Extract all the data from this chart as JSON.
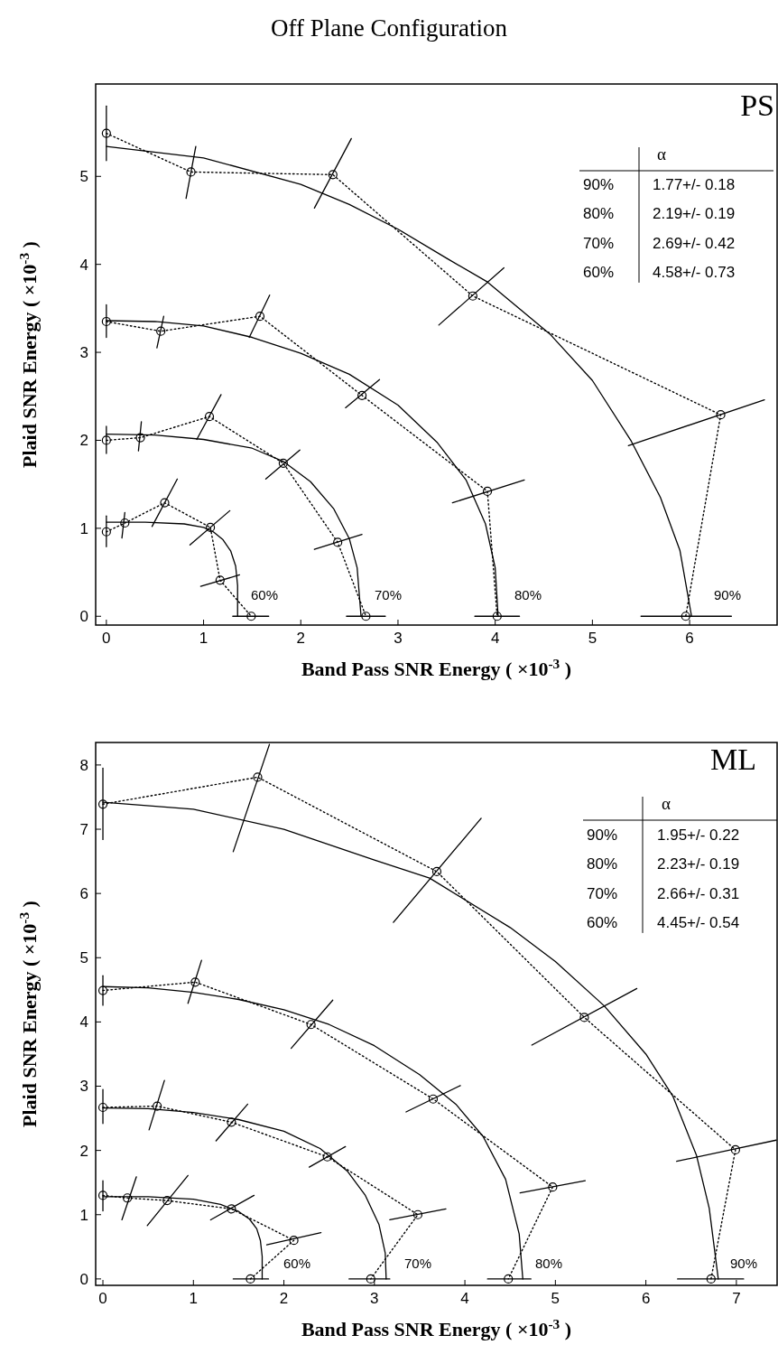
{
  "chart_data": [
    {
      "type": "line",
      "title": "Off Plane Configuration",
      "xlabel": "Band Pass SNR Energy ( ×10$^{-3}$ )",
      "ylabel": "Plaid SNR Energy ( ×10$^{-3}$ )",
      "xlim": [
        -0.11,
        6.9
      ],
      "ylim": [
        -0.1,
        6.05
      ],
      "xticks": [
        0,
        1,
        2,
        3,
        4,
        5,
        6
      ],
      "yticks": [
        0,
        1,
        2,
        3,
        4,
        5
      ],
      "grid": false,
      "annotations": [
        "PS",
        "α",
        "90%",
        "1.77+/- 0.18",
        "80%",
        "2.19+/- 0.19",
        "70%",
        "2.69+/- 0.42",
        "60%",
        "4.58+/- 0.73",
        "60%",
        "70%",
        "80%",
        "90%"
      ],
      "series": [
        {
          "type": "line",
          "color": "#000000",
          "marker": "circle",
          "line_style": "dotted",
          "x": [
            0,
            0.19,
            0.6,
            1.07,
            1.17,
            1.49
          ],
          "values": [
            0.96,
            1.06,
            1.29,
            1.01,
            0.41,
            0
          ]
        },
        {
          "type": "line",
          "color": "#000000",
          "marker": "circle",
          "line_style": "dotted",
          "x": [
            0,
            0.35,
            1.06,
            1.82,
            2.38,
            2.67
          ],
          "values": [
            2.0,
            2.03,
            2.27,
            1.74,
            0.84,
            0
          ]
        },
        {
          "type": "line",
          "color": "#000000",
          "marker": "circle",
          "line_style": "dotted",
          "x": [
            0,
            0.56,
            1.58,
            2.63,
            3.92,
            4.02
          ],
          "values": [
            3.35,
            3.24,
            3.41,
            2.51,
            1.42,
            0
          ]
        },
        {
          "type": "line",
          "color": "#000000",
          "marker": "circle",
          "line_style": "dotted",
          "x": [
            0,
            0.87,
            2.33,
            3.77,
            6.32,
            5.96
          ],
          "values": [
            5.49,
            5.05,
            5.02,
            3.64,
            2.29,
            0
          ]
        },
        {
          "type": "line",
          "color": "#000000",
          "x": [
            0,
            0
          ],
          "values": [
            0.79,
            1.14
          ]
        },
        {
          "type": "line",
          "color": "#000000",
          "x": [
            0.16,
            0.19
          ],
          "values": [
            0.89,
            1.18
          ]
        },
        {
          "type": "line",
          "color": "#000000",
          "x": [
            0.47,
            0.73
          ],
          "values": [
            1.02,
            1.56
          ]
        },
        {
          "type": "line",
          "color": "#000000",
          "x": [
            0.86,
            1.27
          ],
          "values": [
            0.81,
            1.2
          ]
        },
        {
          "type": "line",
          "color": "#000000",
          "x": [
            0.97,
            1.37
          ],
          "values": [
            0.34,
            0.47
          ]
        },
        {
          "type": "line",
          "color": "#000000",
          "x": [
            1.3,
            1.67
          ],
          "values": [
            0,
            0
          ]
        },
        {
          "type": "line",
          "color": "#000000",
          "x": [
            0,
            0
          ],
          "values": [
            1.85,
            2.16
          ]
        },
        {
          "type": "line",
          "color": "#000000",
          "x": [
            0.33,
            0.36
          ],
          "values": [
            1.88,
            2.21
          ]
        },
        {
          "type": "line",
          "color": "#000000",
          "x": [
            0.93,
            1.18
          ],
          "values": [
            2.01,
            2.52
          ]
        },
        {
          "type": "line",
          "color": "#000000",
          "x": [
            1.64,
            1.99
          ],
          "values": [
            1.56,
            1.89
          ]
        },
        {
          "type": "line",
          "color": "#000000",
          "x": [
            2.14,
            2.63
          ],
          "values": [
            0.76,
            0.93
          ]
        },
        {
          "type": "line",
          "color": "#000000",
          "x": [
            2.47,
            2.87
          ],
          "values": [
            0,
            0
          ]
        },
        {
          "type": "line",
          "color": "#000000",
          "x": [
            0,
            0
          ],
          "values": [
            3.17,
            3.54
          ]
        },
        {
          "type": "line",
          "color": "#000000",
          "x": [
            0.52,
            0.59
          ],
          "values": [
            3.05,
            3.41
          ]
        },
        {
          "type": "line",
          "color": "#000000",
          "x": [
            1.47,
            1.68
          ],
          "values": [
            3.17,
            3.65
          ]
        },
        {
          "type": "line",
          "color": "#000000",
          "x": [
            2.46,
            2.81
          ],
          "values": [
            2.37,
            2.69
          ]
        },
        {
          "type": "line",
          "color": "#000000",
          "x": [
            3.56,
            4.3
          ],
          "values": [
            1.29,
            1.55
          ]
        },
        {
          "type": "line",
          "color": "#000000",
          "x": [
            3.79,
            4.25
          ],
          "values": [
            0,
            0
          ]
        },
        {
          "type": "line",
          "color": "#000000",
          "x": [
            0,
            0
          ],
          "values": [
            5.18,
            5.8
          ]
        },
        {
          "type": "line",
          "color": "#000000",
          "x": [
            0.82,
            0.92
          ],
          "values": [
            4.75,
            5.34
          ]
        },
        {
          "type": "line",
          "color": "#000000",
          "x": [
            2.14,
            2.52
          ],
          "values": [
            4.64,
            5.43
          ]
        },
        {
          "type": "line",
          "color": "#000000",
          "x": [
            3.42,
            4.09
          ],
          "values": [
            3.31,
            3.96
          ]
        },
        {
          "type": "line",
          "color": "#000000",
          "x": [
            5.37,
            6.77
          ],
          "values": [
            1.94,
            2.46
          ]
        },
        {
          "type": "line",
          "color": "#000000",
          "x": [
            5.5,
            6.43
          ],
          "values": [
            0,
            0
          ]
        },
        {
          "type": "line",
          "color": "#000000",
          "marker": "none",
          "line_style": "solid",
          "x": [
            0,
            0.4,
            0.8,
            1.0,
            1.1,
            1.2,
            1.28,
            1.33,
            1.35,
            1.35
          ],
          "values": [
            1.07,
            1.07,
            1.05,
            1.01,
            0.96,
            0.87,
            0.74,
            0.57,
            0.35,
            0
          ]
        },
        {
          "type": "line",
          "color": "#000000",
          "marker": "none",
          "line_style": "solid",
          "x": [
            0,
            0.5,
            1.0,
            1.5,
            1.82,
            2.1,
            2.34,
            2.5,
            2.58,
            2.62
          ],
          "values": [
            2.07,
            2.06,
            2.01,
            1.91,
            1.76,
            1.53,
            1.22,
            0.88,
            0.55,
            0
          ]
        },
        {
          "type": "line",
          "color": "#000000",
          "marker": "none",
          "line_style": "solid",
          "x": [
            0,
            0.5,
            1.0,
            1.5,
            2.0,
            2.5,
            3.0,
            3.4,
            3.7,
            3.9,
            4.0,
            4.03
          ],
          "values": [
            3.36,
            3.35,
            3.3,
            3.17,
            2.99,
            2.75,
            2.4,
            1.98,
            1.55,
            1.05,
            0.55,
            0
          ]
        },
        {
          "type": "line",
          "color": "#000000",
          "marker": "none",
          "line_style": "solid",
          "x": [
            0,
            1,
            2,
            2.5,
            3,
            3.5,
            3.92,
            4.57,
            5.0,
            5.4,
            5.7,
            5.9,
            6.02
          ],
          "values": [
            5.34,
            5.21,
            4.91,
            4.68,
            4.4,
            4.07,
            3.8,
            3.2,
            2.68,
            1.99,
            1.35,
            0.75,
            0
          ]
        }
      ]
    },
    {
      "type": "line",
      "xlabel": "Band Pass SNR Energy ( ×10$^{-3}$ )",
      "ylabel": "Plaid SNR Energy ( ×10$^{-3}$ )",
      "xlim": [
        -0.08,
        7.45
      ],
      "ylim": [
        -0.1,
        8.35
      ],
      "xticks": [
        0,
        1,
        2,
        3,
        4,
        5,
        6,
        7
      ],
      "yticks": [
        0,
        1,
        2,
        3,
        4,
        5,
        6,
        7,
        8
      ],
      "grid": false,
      "annotations": [
        "ML",
        "α",
        "90%",
        "1.95+/- 0.22",
        "80%",
        "2.23+/- 0.19",
        "70%",
        "2.66+/- 0.31",
        "60%",
        "4.45+/- 0.54",
        "60%",
        "70%",
        "80%",
        "90%"
      ],
      "series": [
        {
          "type": "line",
          "color": "#000000",
          "marker": "circle",
          "line_style": "dotted",
          "x": [
            0,
            0.27,
            0.71,
            1.42,
            2.11,
            1.63
          ],
          "values": [
            1.3,
            1.26,
            1.22,
            1.09,
            0.6,
            0
          ]
        },
        {
          "type": "line",
          "color": "#000000",
          "marker": "circle",
          "line_style": "dotted",
          "x": [
            0,
            0.6,
            1.42,
            2.48,
            3.48,
            2.96
          ],
          "values": [
            2.67,
            2.69,
            2.44,
            1.9,
            1.0,
            0
          ]
        },
        {
          "type": "line",
          "color": "#000000",
          "marker": "circle",
          "line_style": "dotted",
          "x": [
            0,
            1.02,
            2.3,
            3.65,
            4.97,
            4.48
          ],
          "values": [
            4.49,
            4.62,
            3.96,
            2.8,
            1.43,
            0
          ]
        },
        {
          "type": "line",
          "color": "#000000",
          "marker": "circle",
          "line_style": "dotted",
          "x": [
            0,
            1.71,
            3.69,
            5.32,
            6.99,
            6.72
          ],
          "values": [
            7.39,
            7.81,
            6.34,
            4.07,
            2.01,
            0
          ]
        },
        {
          "type": "line",
          "color": "#000000",
          "x": [
            0,
            0
          ],
          "values": [
            1.06,
            1.53
          ]
        },
        {
          "type": "line",
          "color": "#000000",
          "x": [
            0.21,
            0.37
          ],
          "values": [
            0.92,
            1.59
          ]
        },
        {
          "type": "line",
          "color": "#000000",
          "x": [
            0.49,
            0.94
          ],
          "values": [
            0.83,
            1.61
          ]
        },
        {
          "type": "line",
          "color": "#000000",
          "x": [
            1.19,
            1.67
          ],
          "values": [
            0.92,
            1.3
          ]
        },
        {
          "type": "line",
          "color": "#000000",
          "x": [
            1.81,
            2.41
          ],
          "values": [
            0.53,
            0.72
          ]
        },
        {
          "type": "line",
          "color": "#000000",
          "x": [
            1.44,
            1.83
          ],
          "values": [
            0,
            0
          ]
        },
        {
          "type": "line",
          "color": "#000000",
          "x": [
            0,
            0
          ],
          "values": [
            2.42,
            2.95
          ]
        },
        {
          "type": "line",
          "color": "#000000",
          "x": [
            0.51,
            0.68
          ],
          "values": [
            2.32,
            3.09
          ]
        },
        {
          "type": "line",
          "color": "#000000",
          "x": [
            1.25,
            1.6
          ],
          "values": [
            2.15,
            2.72
          ]
        },
        {
          "type": "line",
          "color": "#000000",
          "x": [
            2.28,
            2.68
          ],
          "values": [
            1.74,
            2.06
          ]
        },
        {
          "type": "line",
          "color": "#000000",
          "x": [
            3.17,
            3.79
          ],
          "values": [
            0.92,
            1.09
          ]
        },
        {
          "type": "line",
          "color": "#000000",
          "x": [
            2.72,
            3.17
          ],
          "values": [
            0,
            0
          ]
        },
        {
          "type": "line",
          "color": "#000000",
          "x": [
            0,
            0
          ],
          "values": [
            4.26,
            4.72
          ]
        },
        {
          "type": "line",
          "color": "#000000",
          "x": [
            0.94,
            1.09
          ],
          "values": [
            4.29,
            4.96
          ]
        },
        {
          "type": "line",
          "color": "#000000",
          "x": [
            2.08,
            2.54
          ],
          "values": [
            3.59,
            4.34
          ]
        },
        {
          "type": "line",
          "color": "#000000",
          "x": [
            3.35,
            3.95
          ],
          "values": [
            2.6,
            3.01
          ]
        },
        {
          "type": "line",
          "color": "#000000",
          "x": [
            4.61,
            5.33
          ],
          "values": [
            1.34,
            1.53
          ]
        },
        {
          "type": "line",
          "color": "#000000",
          "x": [
            4.25,
            4.73
          ],
          "values": [
            0,
            0
          ]
        },
        {
          "type": "line",
          "color": "#000000",
          "x": [
            0,
            0
          ],
          "values": [
            6.84,
            7.95
          ]
        },
        {
          "type": "line",
          "color": "#000000",
          "x": [
            1.44,
            1.84
          ],
          "values": [
            6.65,
            8.32
          ]
        },
        {
          "type": "line",
          "color": "#000000",
          "x": [
            3.21,
            4.18
          ],
          "values": [
            5.55,
            7.17
          ]
        },
        {
          "type": "line",
          "color": "#000000",
          "x": [
            4.74,
            5.9
          ],
          "values": [
            3.64,
            4.52
          ]
        },
        {
          "type": "line",
          "color": "#000000",
          "x": [
            6.34,
            7.44
          ],
          "values": [
            1.83,
            2.16
          ]
        },
        {
          "type": "line",
          "color": "#000000",
          "x": [
            6.35,
            7.08
          ],
          "values": [
            0,
            0
          ]
        },
        {
          "type": "line",
          "color": "#000000",
          "marker": "none",
          "line_style": "solid",
          "x": [
            0,
            0.5,
            1.0,
            1.3,
            1.5,
            1.62,
            1.7,
            1.74,
            1.76,
            1.76
          ],
          "values": [
            1.28,
            1.28,
            1.24,
            1.16,
            1.05,
            0.93,
            0.78,
            0.6,
            0.35,
            0
          ]
        },
        {
          "type": "line",
          "color": "#000000",
          "marker": "none",
          "line_style": "solid",
          "x": [
            0,
            0.5,
            1.0,
            1.5,
            2.0,
            2.4,
            2.7,
            2.9,
            3.05,
            3.12,
            3.13
          ],
          "values": [
            2.66,
            2.65,
            2.59,
            2.48,
            2.3,
            2.03,
            1.68,
            1.3,
            0.85,
            0.4,
            0
          ]
        },
        {
          "type": "line",
          "color": "#000000",
          "marker": "none",
          "line_style": "solid",
          "x": [
            0,
            0.5,
            1,
            1.5,
            2,
            2.5,
            3,
            3.5,
            3.9,
            4.2,
            4.45,
            4.6,
            4.64
          ],
          "values": [
            4.55,
            4.53,
            4.46,
            4.35,
            4.19,
            3.96,
            3.63,
            3.18,
            2.72,
            2.22,
            1.55,
            0.7,
            0
          ]
        },
        {
          "type": "line",
          "color": "#000000",
          "marker": "none",
          "line_style": "solid",
          "x": [
            0,
            1,
            2,
            3,
            3.61,
            4.5,
            5.0,
            5.54,
            6.0,
            6.3,
            6.56,
            6.7,
            6.8
          ],
          "values": [
            7.42,
            7.31,
            7.0,
            6.52,
            6.24,
            5.47,
            4.94,
            4.25,
            3.5,
            2.84,
            1.92,
            1.1,
            0
          ]
        }
      ]
    }
  ]
}
